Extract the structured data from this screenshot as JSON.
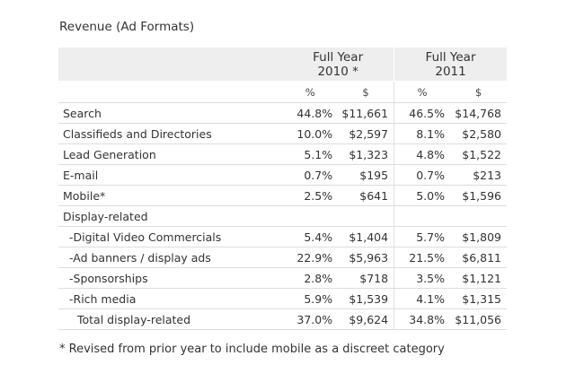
{
  "title": "Revenue (Ad Formats)",
  "header": {
    "col2010_line1": "Full Year",
    "col2010_line2": "2010 *",
    "col2011_line1": "Full Year",
    "col2011_line2": "2011"
  },
  "units": [
    "%",
    "$",
    "%",
    "$"
  ],
  "rows": [
    {
      "label": "Search",
      "p2010": "44.8%",
      "d2010": "$11,661",
      "p2011": "46.5%",
      "d2011": "$14,768"
    },
    {
      "label": "Classifieds and Directories",
      "p2010": "10.0%",
      "d2010": "$2,597",
      "p2011": "8.1%",
      "d2011": "$2,580"
    },
    {
      "label": "Lead Generation",
      "p2010": "5.1%",
      "d2010": "$1,323",
      "p2011": "4.8%",
      "d2011": "$1,522"
    },
    {
      "label": "E-mail",
      "p2010": "0.7%",
      "d2010": "$195",
      "p2011": "0.7%",
      "d2011": "$213"
    },
    {
      "label": "Mobile*",
      "p2010": "2.5%",
      "d2010": "$641",
      "p2011": "5.0%",
      "d2011": "$1,596"
    },
    {
      "label": "Display-related",
      "p2010": "",
      "d2010": "",
      "p2011": "",
      "d2011": ""
    },
    {
      "label": "-Digital Video Commercials",
      "p2010": "5.4%",
      "d2010": "$1,404",
      "p2011": "5.7%",
      "d2011": "$1,809"
    },
    {
      "label": "-Ad banners / display ads",
      "p2010": "22.9%",
      "d2010": "$5,963",
      "p2011": "21.5%",
      "d2011": "$6,811"
    },
    {
      "label": "-Sponsorships",
      "p2010": "2.8%",
      "d2010": "$718",
      "p2011": "3.5%",
      "d2011": "$1,121"
    },
    {
      "label": "-Rich media",
      "p2010": "5.9%",
      "d2010": "$1,539",
      "p2011": "4.1%",
      "d2011": "$1,315"
    },
    {
      "label": "Total display-related",
      "p2010": "37.0%",
      "d2010": "$9,624",
      "p2011": "34.8%",
      "d2011": "$11,056"
    }
  ],
  "footnote": "* Revised from prior year to include mobile as a discreet category"
}
